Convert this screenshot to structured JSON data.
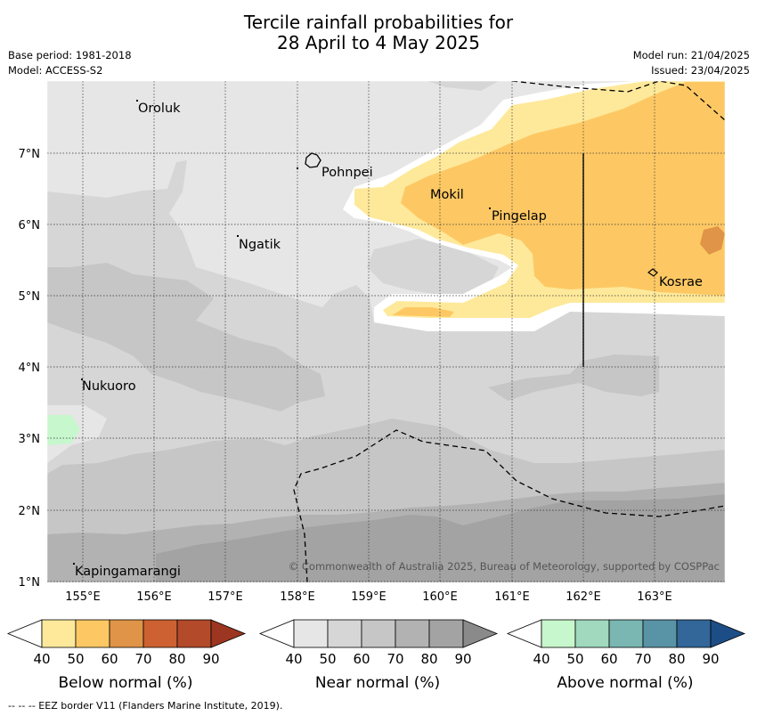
{
  "header": {
    "title_line1": "Tercile rainfall probabilities for",
    "title_line2": "28 April to 4 May 2025",
    "base_period": "Base period: 1981-2018",
    "model": "Model: ACCESS-S2",
    "model_run": "Model run: 21/04/2025",
    "issued": "Issued: 23/04/2025"
  },
  "map": {
    "lat_ticks": [
      "7°N",
      "6°N",
      "5°N",
      "4°N",
      "3°N",
      "2°N",
      "1°N"
    ],
    "lon_ticks": [
      "155°E",
      "156°E",
      "157°E",
      "158°E",
      "159°E",
      "160°E",
      "161°E",
      "162°E",
      "163°E"
    ],
    "places": {
      "oroluk": "Oroluk",
      "pohnpei": "Pohnpei",
      "mokil": "Mokil",
      "pingelap": "Pingelap",
      "ngatik": "Ngatik",
      "kosrae": "Kosrae",
      "nukuoro": "Nukuoro",
      "kapingamarangi": "Kapingamarangi"
    },
    "copyright": "© Commonwealth of Australia 2025, Bureau of Meteorology, supported by COSPPac",
    "colors": {
      "background_near": "#e6e6e6",
      "near_50": "#d6d6d6",
      "near_60": "#c6c6c6",
      "near_70": "#b2b2b2",
      "near_80": "#a3a3a3",
      "below_40": "#fee99b",
      "below_50": "#fdc864",
      "below_60": "#e09447",
      "above_40": "#c7f7cc"
    }
  },
  "legend": {
    "ticks": [
      "40",
      "50",
      "60",
      "70",
      "80",
      "90"
    ],
    "below": {
      "title": "Below normal (%)",
      "colors": [
        "#fee99b",
        "#fdc864",
        "#e09447",
        "#cd6131",
        "#b34a29",
        "#9c3620"
      ]
    },
    "near": {
      "title": "Near normal (%)",
      "colors": [
        "#e6e6e6",
        "#d6d6d6",
        "#c6c6c6",
        "#b2b2b2",
        "#a3a3a3",
        "#8a8a8a"
      ]
    },
    "above": {
      "title": "Above normal (%)",
      "colors": [
        "#c7f7cc",
        "#a0d9bd",
        "#7ab6b2",
        "#5993a6",
        "#336699",
        "#1d4d86"
      ]
    }
  },
  "footnote": "--  --  -- EEZ border V11 (Flanders Marine Institute, 2019)."
}
